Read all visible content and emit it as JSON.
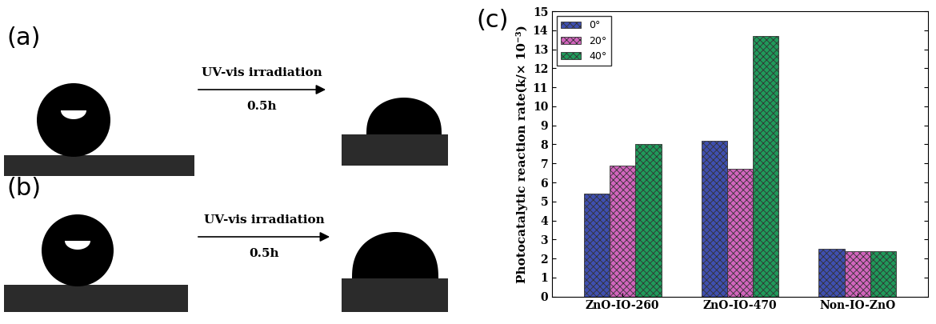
{
  "panels": [
    {
      "label": "(a)",
      "arrow_text": "UV-vis irradiation",
      "time": "0.5h"
    },
    {
      "label": "(b)",
      "arrow_text": "UV-vis irradiation",
      "time": "0.5h"
    }
  ],
  "chart_panel_label": "(c)",
  "chart_data": {
    "type": "bar",
    "ylabel": "Photocatalytic reaction rate(k/× 10⁻³)",
    "categories": [
      "ZnO-IO-260",
      "ZnO-IO-470",
      "Non-IO-ZnO"
    ],
    "series": [
      {
        "name": "0°",
        "color": "#3f4fb0",
        "values": [
          5.4,
          8.2,
          2.5
        ]
      },
      {
        "name": "20°",
        "color": "#d264bd",
        "values": [
          6.9,
          6.7,
          2.4
        ]
      },
      {
        "name": "40°",
        "color": "#1f9a5a",
        "values": [
          8.0,
          13.7,
          2.4
        ]
      }
    ],
    "ylim": [
      0,
      15
    ],
    "yticks": [
      0,
      1,
      2,
      3,
      4,
      5,
      6,
      7,
      8,
      9,
      10,
      11,
      12,
      13,
      14,
      15
    ],
    "legend": "upper left",
    "grid": false
  }
}
